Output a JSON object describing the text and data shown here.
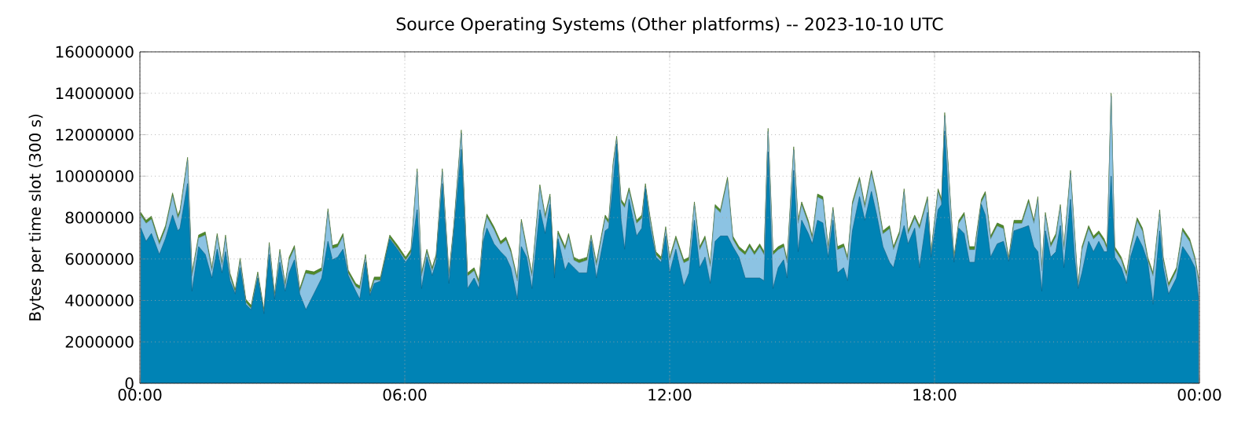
{
  "chart_data": {
    "type": "area",
    "title": "Source Operating Systems (Other platforms) -- 2023-10-10 UTC",
    "ylabel": "Bytes per time slot (300 s)",
    "stacked": true,
    "grid": true,
    "xlim": [
      0,
      24
    ],
    "xticks": [
      {
        "value": 0,
        "label": "00:00"
      },
      {
        "value": 6,
        "label": "06:00"
      },
      {
        "value": 12,
        "label": "12:00"
      },
      {
        "value": 18,
        "label": "18:00"
      },
      {
        "value": 24,
        "label": "00:00"
      }
    ],
    "ylim": [
      0,
      16000000
    ],
    "yticks": [
      0,
      2000000,
      4000000,
      6000000,
      8000000,
      10000000,
      12000000,
      14000000,
      16000000
    ],
    "x": [
      0.02,
      0.14,
      0.26,
      0.44,
      0.58,
      0.74,
      0.86,
      0.91,
      1.08,
      1.18,
      1.33,
      1.48,
      1.63,
      1.75,
      1.86,
      1.94,
      2.04,
      2.16,
      2.27,
      2.4,
      2.52,
      2.67,
      2.81,
      2.93,
      3.05,
      3.17,
      3.29,
      3.38,
      3.5,
      3.62,
      3.76,
      3.94,
      4.12,
      4.26,
      4.36,
      4.48,
      4.6,
      4.72,
      4.89,
      4.98,
      5.11,
      5.21,
      5.31,
      5.45,
      5.66,
      5.84,
      6.02,
      6.14,
      6.28,
      6.38,
      6.5,
      6.62,
      6.71,
      6.85,
      7.0,
      7.11,
      7.28,
      7.42,
      7.57,
      7.68,
      7.78,
      7.86,
      8.02,
      8.17,
      8.29,
      8.4,
      8.55,
      8.64,
      8.76,
      8.88,
      9.06,
      9.18,
      9.29,
      9.39,
      9.47,
      9.63,
      9.71,
      9.83,
      9.95,
      10.13,
      10.22,
      10.34,
      10.54,
      10.62,
      10.72,
      10.8,
      10.9,
      10.98,
      11.08,
      11.25,
      11.37,
      11.45,
      11.55,
      11.69,
      11.81,
      11.91,
      12.0,
      12.14,
      12.32,
      12.44,
      12.56,
      12.68,
      12.8,
      12.92,
      13.03,
      13.15,
      13.31,
      13.43,
      13.57,
      13.71,
      13.81,
      13.92,
      14.04,
      14.14,
      14.23,
      14.34,
      14.46,
      14.58,
      14.66,
      14.81,
      14.91,
      14.99,
      15.14,
      15.23,
      15.35,
      15.47,
      15.59,
      15.7,
      15.8,
      15.94,
      16.03,
      16.14,
      16.3,
      16.42,
      16.57,
      16.69,
      16.83,
      16.98,
      17.07,
      17.21,
      17.31,
      17.4,
      17.55,
      17.66,
      17.84,
      17.92,
      18.08,
      18.16,
      18.23,
      18.32,
      18.44,
      18.55,
      18.67,
      18.79,
      18.91,
      19.06,
      19.15,
      19.27,
      19.42,
      19.56,
      19.68,
      19.8,
      19.98,
      20.13,
      20.25,
      20.34,
      20.43,
      20.51,
      20.63,
      20.75,
      20.85,
      20.93,
      21.08,
      21.17,
      21.25,
      21.34,
      21.49,
      21.6,
      21.72,
      21.84,
      21.91,
      22.0,
      22.08,
      22.23,
      22.35,
      22.44,
      22.59,
      22.71,
      22.83,
      22.95,
      23.1,
      23.18,
      23.3,
      23.48,
      23.62,
      23.78,
      23.9,
      23.98
    ],
    "series": [
      {
        "color": "#0083b5",
        "values": [
          7490000.0,
          6850000.0,
          7230000.0,
          6220000.0,
          6980000.0,
          8120000.0,
          7360000.0,
          7490000.0,
          9640000.0,
          4440000.0,
          6600000.0,
          6220000.0,
          5080000.0,
          6470000.0,
          5330000.0,
          6350000.0,
          4950000.0,
          4310000.0,
          5580000.0,
          3810000.0,
          3550000.0,
          5080000.0,
          3350000.0,
          6220000.0,
          4060000.0,
          5840000.0,
          4440000.0,
          5330000.0,
          5960000.0,
          4310000.0,
          3550000.0,
          4310000.0,
          5080000.0,
          6850000.0,
          5960000.0,
          6090000.0,
          6470000.0,
          5200000.0,
          4440000.0,
          4060000.0,
          5840000.0,
          4240000.0,
          4820000.0,
          4930000.0,
          6960000.0,
          6450000.0,
          5840000.0,
          6220000.0,
          8380000.0,
          4570000.0,
          6090000.0,
          5200000.0,
          5840000.0,
          9640000.0,
          4820000.0,
          7230000.0,
          11290000.0,
          4570000.0,
          5080000.0,
          4570000.0,
          6850000.0,
          7490000.0,
          6730000.0,
          6350000.0,
          6090000.0,
          5580000.0,
          4060000.0,
          6600000.0,
          6090000.0,
          4570000.0,
          8380000.0,
          7230000.0,
          8630000.0,
          5080000.0,
          6980000.0,
          5460000.0,
          5840000.0,
          5580000.0,
          5330000.0,
          5330000.0,
          6850000.0,
          5080000.0,
          7360000.0,
          7490000.0,
          9640000.0,
          11550000.0,
          7870000.0,
          6470000.0,
          8880000.0,
          7110000.0,
          7490000.0,
          9390000.0,
          7610000.0,
          6090000.0,
          5840000.0,
          7110000.0,
          5330000.0,
          6470000.0,
          4700000.0,
          5330000.0,
          7870000.0,
          5580000.0,
          6090000.0,
          4820000.0,
          6850000.0,
          7110000.0,
          7110000.0,
          6600000.0,
          6090000.0,
          5080000.0,
          5080000.0,
          5080000.0,
          5080000.0,
          4950000.0,
          11170000.0,
          4570000.0,
          5580000.0,
          5960000.0,
          5080000.0,
          10280000.0,
          6350000.0,
          7870000.0,
          7230000.0,
          6730000.0,
          7870000.0,
          7740000.0,
          6090000.0,
          7870000.0,
          5330000.0,
          5580000.0,
          4950000.0,
          7360000.0,
          9010000.0,
          7870000.0,
          9260000.0,
          8120000.0,
          6600000.0,
          5840000.0,
          5580000.0,
          6850000.0,
          7610000.0,
          6730000.0,
          7490000.0,
          5580000.0,
          8250000.0,
          6090000.0,
          8380000.0,
          8630000.0,
          12180000.0,
          8630000.0,
          5840000.0,
          7490000.0,
          7230000.0,
          5840000.0,
          5840000.0,
          8630000.0,
          8120000.0,
          6090000.0,
          6730000.0,
          6850000.0,
          5890000.0,
          7360000.0,
          7490000.0,
          7610000.0,
          6600000.0,
          6350000.0,
          4440000.0,
          7360000.0,
          6090000.0,
          6350000.0,
          7610000.0,
          5580000.0,
          8880000.0,
          6090000.0,
          4570000.0,
          5330000.0,
          6850000.0,
          6350000.0,
          6850000.0,
          6350000.0,
          6350000.0,
          10000000.0,
          6090000.0,
          5580000.0,
          4820000.0,
          6090000.0,
          7110000.0,
          6600000.0,
          5840000.0,
          3810000.0,
          7360000.0,
          5580000.0,
          4310000.0,
          5080000.0,
          6600000.0,
          6090000.0,
          5580000.0,
          4060000.0
        ]
      },
      {
        "color": "#8cc3e3",
        "values": [
          610000.0,
          870000.0,
          690000.0,
          480000.0,
          480000.0,
          920000.0,
          610000.0,
          740000.0,
          1120000.0,
          740000.0,
          410000.0,
          940000.0,
          350000.0,
          610000.0,
          360000.0,
          660000.0,
          230000.0,
          60000.0,
          310000.0,
          100000.0,
          60000.0,
          150000.0,
          50000.0,
          430000.0,
          100000.0,
          480000.0,
          230000.0,
          610000.0,
          540000.0,
          110000.0,
          1760000.0,
          920000.0,
          350000.0,
          1430000.0,
          540000.0,
          490000.0,
          610000.0,
          110000.0,
          230000.0,
          490000.0,
          230000.0,
          50000.0,
          160000.0,
          50000.0,
          50000.0,
          50000.0,
          100000.0,
          100000.0,
          1830000.0,
          610000.0,
          230000.0,
          230000.0,
          230000.0,
          570000.0,
          360000.0,
          230000.0,
          790000.0,
          610000.0,
          350000.0,
          230000.0,
          360000.0,
          530000.0,
          680000.0,
          350000.0,
          820000.0,
          740000.0,
          870000.0,
          1170000.0,
          360000.0,
          610000.0,
          1060000.0,
          740000.0,
          360000.0,
          100000.0,
          230000.0,
          990000.0,
          1240000.0,
          360000.0,
          480000.0,
          610000.0,
          160000.0,
          610000.0,
          610000.0,
          230000.0,
          870000.0,
          230000.0,
          860000.0,
          2010000.0,
          410000.0,
          610000.0,
          480000.0,
          100000.0,
          360000.0,
          110000.0,
          100000.0,
          300000.0,
          610000.0,
          490000.0,
          1110000.0,
          610000.0,
          740000.0,
          870000.0,
          870000.0,
          820000.0,
          1630000.0,
          1120000.0,
          2690000.0,
          360000.0,
          360000.0,
          1120000.0,
          1500000.0,
          1120000.0,
          1500000.0,
          1250000.0,
          990000.0,
          1630000.0,
          870000.0,
          620000.0,
          730000.0,
          990000.0,
          1370000.0,
          740000.0,
          490000.0,
          230000.0,
          1120000.0,
          1120000.0,
          360000.0,
          480000.0,
          1120000.0,
          1000000.0,
          990000.0,
          1250000.0,
          790000.0,
          610000.0,
          870000.0,
          870000.0,
          610000.0,
          1620000.0,
          870000.0,
          360000.0,
          1630000.0,
          480000.0,
          480000.0,
          1880000.0,
          610000.0,
          110000.0,
          860000.0,
          100000.0,
          740000.0,
          1370000.0,
          100000.0,
          230000.0,
          870000.0,
          610000.0,
          610000.0,
          100000.0,
          990000.0,
          870000.0,
          860000.0,
          610000.0,
          50000.0,
          360000.0,
          230000.0,
          1120000.0,
          1120000.0,
          2510000.0,
          990000.0,
          740000.0,
          490000.0,
          730000.0,
          870000.0,
          870000.0,
          1250000.0,
          1120000.0,
          50000.0,
          1120000.0,
          610000.0,
          610000.0,
          360000.0,
          480000.0,
          100000.0,
          3860000.0,
          360000.0,
          360000.0,
          360000.0,
          360000.0,
          730000.0,
          740000.0,
          100000.0,
          1370000.0,
          870000.0,
          360000.0,
          360000.0,
          350000.0,
          740000.0,
          740000.0,
          360000.0,
          870000.0
        ]
      },
      {
        "color": "#4f8a2a",
        "values": [
          150000.0,
          150000.0,
          150000.0,
          150000.0,
          150000.0,
          150000.0,
          150000.0,
          150000.0,
          150000.0,
          150000.0,
          150000.0,
          150000.0,
          150000.0,
          150000.0,
          150000.0,
          150000.0,
          150000.0,
          150000.0,
          150000.0,
          150000.0,
          150000.0,
          150000.0,
          150000.0,
          150000.0,
          150000.0,
          150000.0,
          150000.0,
          150000.0,
          150000.0,
          150000.0,
          150000.0,
          150000.0,
          150000.0,
          150000.0,
          150000.0,
          150000.0,
          150000.0,
          150000.0,
          150000.0,
          150000.0,
          150000.0,
          150000.0,
          150000.0,
          150000.0,
          150000.0,
          150000.0,
          150000.0,
          150000.0,
          150000.0,
          150000.0,
          150000.0,
          150000.0,
          150000.0,
          150000.0,
          150000.0,
          150000.0,
          150000.0,
          150000.0,
          150000.0,
          150000.0,
          150000.0,
          150000.0,
          150000.0,
          150000.0,
          150000.0,
          150000.0,
          150000.0,
          150000.0,
          150000.0,
          150000.0,
          150000.0,
          150000.0,
          150000.0,
          150000.0,
          150000.0,
          150000.0,
          150000.0,
          150000.0,
          150000.0,
          150000.0,
          150000.0,
          150000.0,
          150000.0,
          150000.0,
          150000.0,
          150000.0,
          150000.0,
          150000.0,
          150000.0,
          150000.0,
          150000.0,
          150000.0,
          150000.0,
          150000.0,
          150000.0,
          150000.0,
          150000.0,
          150000.0,
          150000.0,
          150000.0,
          150000.0,
          150000.0,
          150000.0,
          150000.0,
          150000.0,
          150000.0,
          150000.0,
          150000.0,
          150000.0,
          150000.0,
          150000.0,
          150000.0,
          150000.0,
          150000.0,
          150000.0,
          150000.0,
          150000.0,
          150000.0,
          150000.0,
          150000.0,
          150000.0,
          150000.0,
          150000.0,
          150000.0,
          150000.0,
          150000.0,
          150000.0,
          150000.0,
          150000.0,
          150000.0,
          150000.0,
          150000.0,
          150000.0,
          150000.0,
          150000.0,
          150000.0,
          150000.0,
          150000.0,
          150000.0,
          150000.0,
          150000.0,
          150000.0,
          150000.0,
          150000.0,
          150000.0,
          150000.0,
          150000.0,
          150000.0,
          150000.0,
          150000.0,
          150000.0,
          150000.0,
          150000.0,
          150000.0,
          150000.0,
          150000.0,
          150000.0,
          150000.0,
          150000.0,
          150000.0,
          150000.0,
          150000.0,
          150000.0,
          150000.0,
          150000.0,
          150000.0,
          150000.0,
          150000.0,
          150000.0,
          150000.0,
          150000.0,
          150000.0,
          150000.0,
          150000.0,
          150000.0,
          150000.0,
          150000.0,
          150000.0,
          150000.0,
          150000.0,
          150000.0,
          150000.0,
          150000.0,
          150000.0,
          150000.0,
          150000.0,
          150000.0,
          150000.0,
          150000.0,
          150000.0,
          150000.0,
          150000.0,
          150000.0,
          150000.0,
          150000.0,
          150000.0,
          150000.0,
          150000.0
        ]
      }
    ]
  }
}
